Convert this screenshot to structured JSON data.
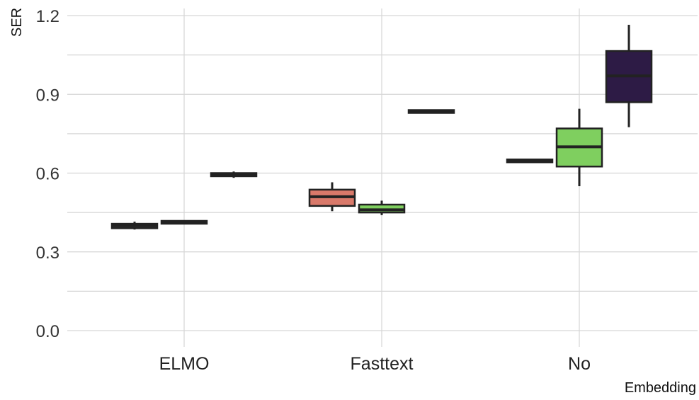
{
  "chart_data": {
    "type": "boxplot",
    "xlabel": "Embedding",
    "ylabel": "SER",
    "ylim": [
      0.0,
      1.2
    ],
    "y_ticks": [
      "0.0",
      "0.3",
      "0.6",
      "0.9",
      "1.2"
    ],
    "grid": true,
    "legend": "none",
    "categories": [
      "ELMO",
      "Fasttext",
      "No"
    ],
    "series": [
      {
        "color": "#3a3a3a",
        "boxes": [
          {
            "category": "ELMO",
            "min": 0.385,
            "q1": 0.39,
            "median": 0.4,
            "q3": 0.407,
            "max": 0.415
          },
          null,
          {
            "category": "No",
            "min": 0.645,
            "q1": 0.645,
            "median": 0.648,
            "q3": 0.652,
            "max": 0.652
          }
        ]
      },
      {
        "color": "#3a3a3a",
        "boxes": [
          {
            "category": "ELMO",
            "min": 0.412,
            "q1": 0.412,
            "median": 0.415,
            "q3": 0.418,
            "max": 0.418
          },
          {
            "category": "Fasttext",
            "min": 0.44,
            "q1": 0.45,
            "median": 0.46,
            "q3": 0.48,
            "max": 0.495
          },
          {
            "category": "No",
            "min": 0.55,
            "q1": 0.625,
            "median": 0.7,
            "q3": 0.77,
            "max": 0.845
          }
        ]
      },
      {
        "color": "#3a3a3a",
        "boxes": [
          {
            "category": "ELMO",
            "min": 0.582,
            "q1": 0.588,
            "median": 0.595,
            "q3": 0.6,
            "max": 0.606
          },
          {
            "category": "Fasttext",
            "min": 0.829,
            "q1": 0.831,
            "median": 0.835,
            "q3": 0.84,
            "max": 0.842
          },
          {
            "category": "No",
            "min": 0.775,
            "q1": 0.87,
            "median": 0.97,
            "q3": 1.065,
            "max": 1.165
          }
        ]
      }
    ],
    "fasttext_extra_box": {
      "category": "Fasttext",
      "min": 0.455,
      "q1": 0.475,
      "median": 0.51,
      "q3": 0.537,
      "max": 0.565,
      "color": "#d9796a"
    },
    "box_fills": {
      "ELMO": [
        "#3a3a3a",
        "#3a3a3a",
        "#3a3a3a"
      ],
      "Fasttext": [
        "#d9796a",
        "#7fcf5f",
        "#3a3a3a"
      ],
      "No": [
        "#3a3a3a",
        "#7fcf5f",
        "#2d1b45"
      ]
    }
  }
}
